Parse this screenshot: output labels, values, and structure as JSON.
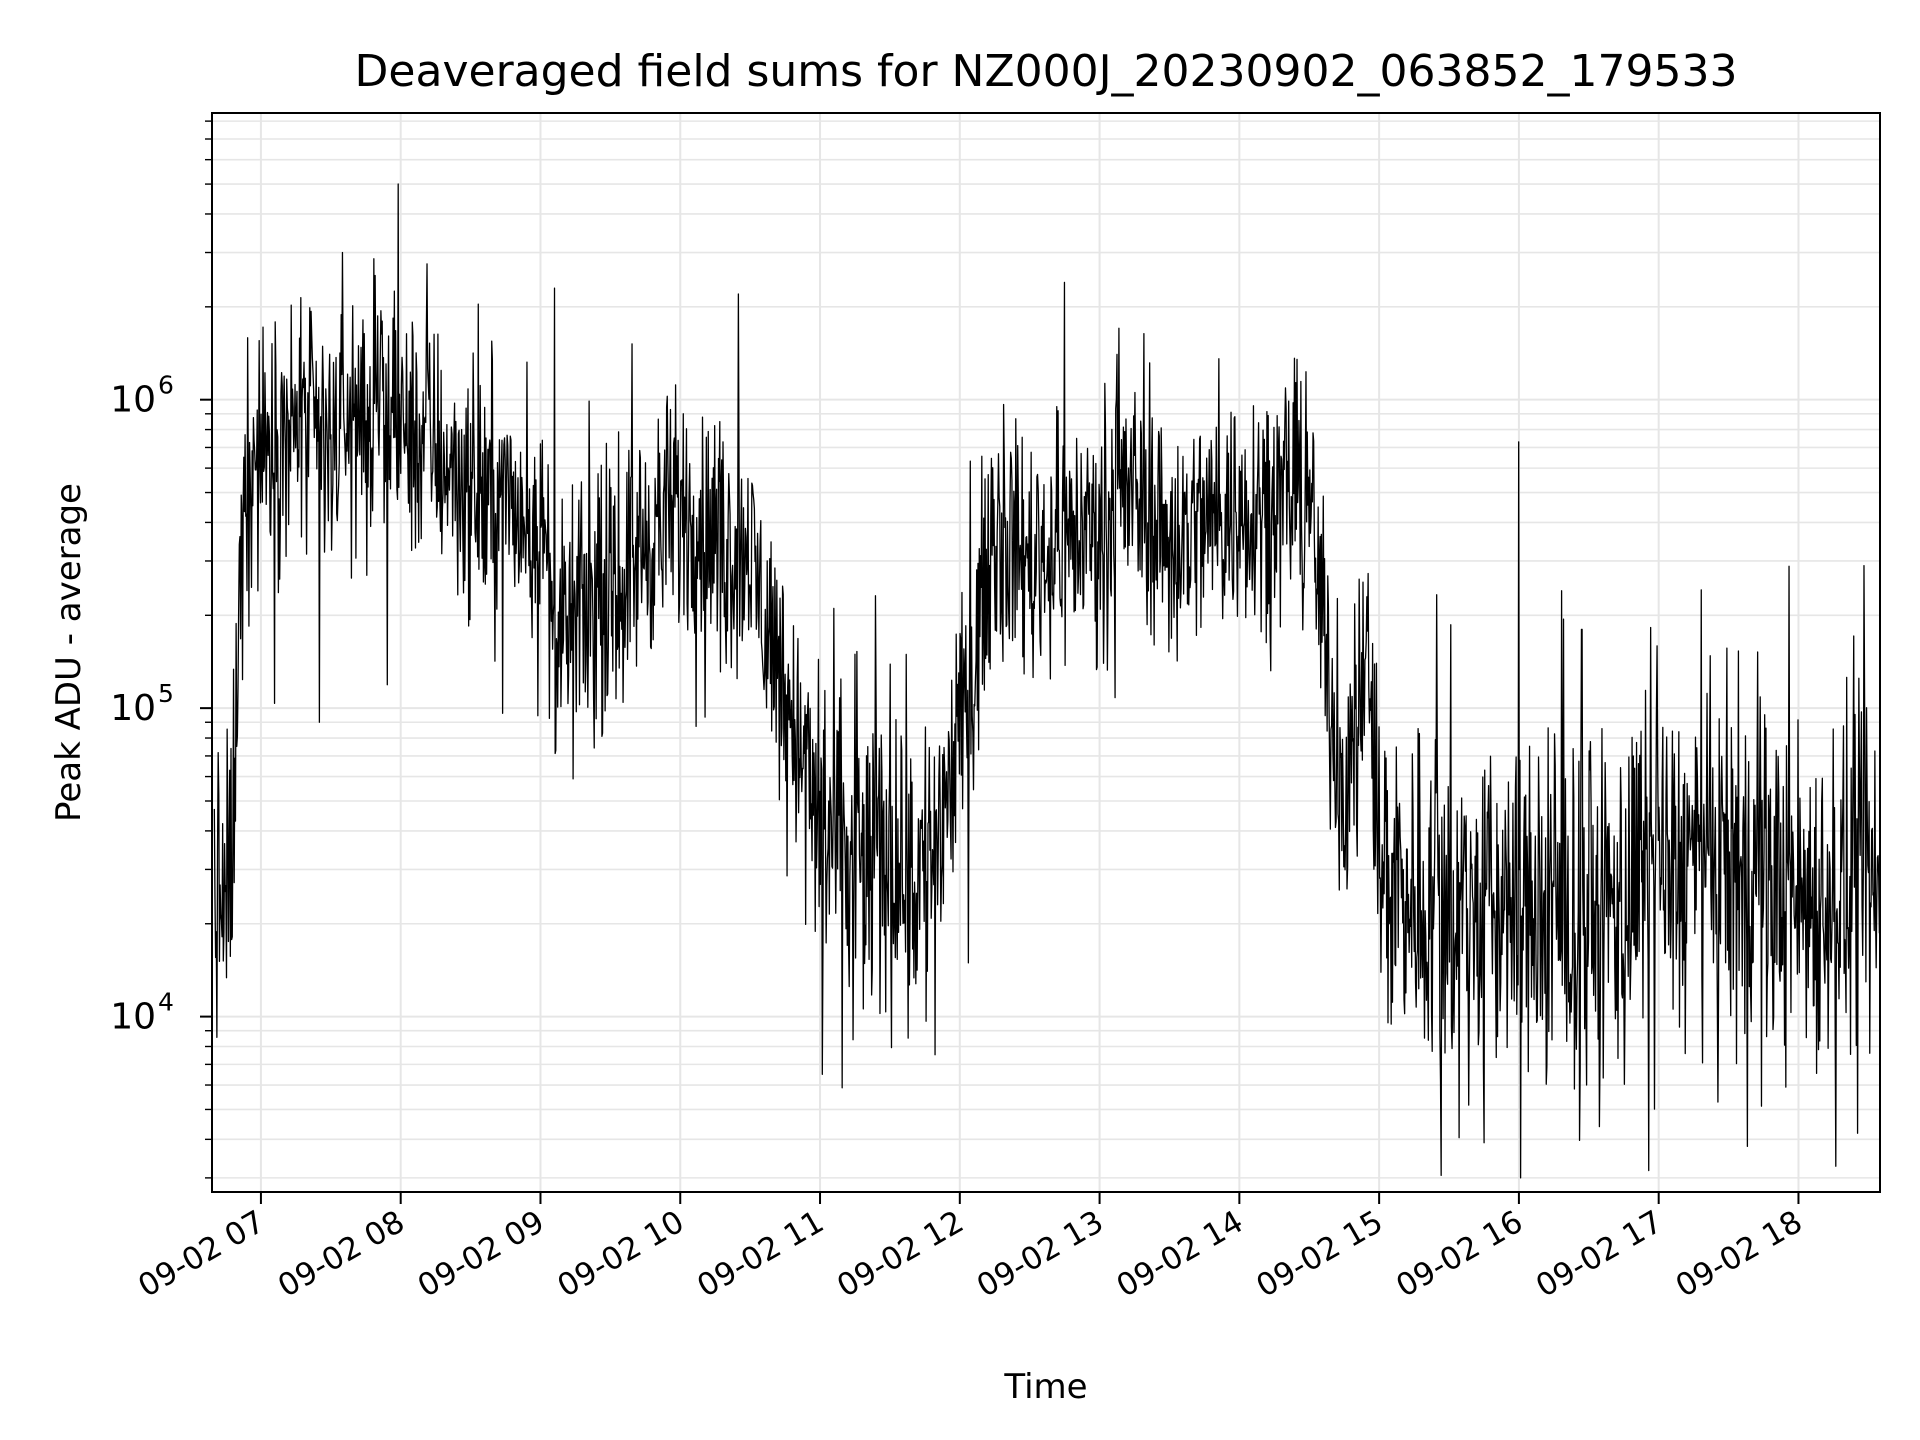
{
  "chart_data": {
    "type": "line",
    "title": "Deaveraged field sums for NZ000J_20230902_063852_179533",
    "xlabel": "Time",
    "ylabel": "Peak ADU - average",
    "yscale": "log",
    "ylim": [
      2700,
      8500000
    ],
    "xlim": [
      "2023-09-02 06:39",
      "2023-09-02 18:35"
    ],
    "grid": true,
    "line_color": "#000000",
    "x_ticks": [
      "09-02 07",
      "09-02 08",
      "09-02 09",
      "09-02 10",
      "09-02 11",
      "09-02 12",
      "09-02 13",
      "09-02 14",
      "09-02 15",
      "09-02 16",
      "09-02 17",
      "09-02 18"
    ],
    "y_ticks": [
      {
        "base": "10",
        "exp": "4",
        "value": 10000
      },
      {
        "base": "10",
        "exp": "5",
        "value": 100000
      },
      {
        "base": "10",
        "exp": "6",
        "value": 1000000
      }
    ],
    "series": [
      {
        "points": [
          [
            "2023-09-02 06:40",
            25000
          ],
          [
            "2023-09-02 06:45",
            22000
          ],
          [
            "2023-09-02 06:48",
            35000
          ],
          [
            "2023-09-02 06:50",
            150000
          ],
          [
            "2023-09-02 06:53",
            600000
          ],
          [
            "2023-09-02 07:00",
            700000
          ],
          [
            "2023-09-02 07:15",
            800000
          ],
          [
            "2023-09-02 07:30",
            750000
          ],
          [
            "2023-09-02 07:45",
            900000
          ],
          [
            "2023-09-02 08:00",
            800000
          ],
          [
            "2023-09-02 08:15",
            700000
          ],
          [
            "2023-09-02 08:30",
            500000
          ],
          [
            "2023-09-02 08:45",
            450000
          ],
          [
            "2023-09-02 09:00",
            400000
          ],
          [
            "2023-09-02 09:07",
            150000
          ],
          [
            "2023-09-02 09:15",
            200000
          ],
          [
            "2023-09-02 09:30",
            220000
          ],
          [
            "2023-09-02 09:45",
            350000
          ],
          [
            "2023-09-02 10:00",
            450000
          ],
          [
            "2023-09-02 10:15",
            350000
          ],
          [
            "2023-09-02 10:30",
            300000
          ],
          [
            "2023-09-02 10:45",
            120000
          ],
          [
            "2023-09-02 11:00",
            40000
          ],
          [
            "2023-09-02 11:15",
            30000
          ],
          [
            "2023-09-02 11:30",
            35000
          ],
          [
            "2023-09-02 11:45",
            28000
          ],
          [
            "2023-09-02 12:00",
            80000
          ],
          [
            "2023-09-02 12:15",
            400000
          ],
          [
            "2023-09-02 12:30",
            300000
          ],
          [
            "2023-09-02 12:45",
            350000
          ],
          [
            "2023-09-02 13:00",
            400000
          ],
          [
            "2023-09-02 13:15",
            500000
          ],
          [
            "2023-09-02 13:30",
            350000
          ],
          [
            "2023-09-02 13:45",
            400000
          ],
          [
            "2023-09-02 14:00",
            450000
          ],
          [
            "2023-09-02 14:15",
            500000
          ],
          [
            "2023-09-02 14:30",
            500000
          ],
          [
            "2023-09-02 14:37",
            150000
          ],
          [
            "2023-09-02 14:45",
            50000
          ],
          [
            "2023-09-02 14:55",
            150000
          ],
          [
            "2023-09-02 15:00",
            30000
          ],
          [
            "2023-09-02 15:30",
            22000
          ],
          [
            "2023-09-02 16:00",
            22000
          ],
          [
            "2023-09-02 16:30",
            20000
          ],
          [
            "2023-09-02 17:00",
            30000
          ],
          [
            "2023-09-02 17:30",
            30000
          ],
          [
            "2023-09-02 18:00",
            25000
          ],
          [
            "2023-09-02 18:35",
            25000
          ]
        ],
        "spikes": [
          [
            "2023-09-02 07:59",
            5000000
          ],
          [
            "2023-09-02 07:35",
            3000000
          ],
          [
            "2023-09-02 09:06",
            2300000
          ],
          [
            "2023-09-02 10:25",
            2200000
          ],
          [
            "2023-09-02 12:45",
            2400000
          ],
          [
            "2023-09-02 16:00",
            730000
          ],
          [
            "2023-09-02 07:25",
            90000
          ],
          [
            "2023-09-02 11:01",
            6500
          ],
          [
            "2023-09-02 15:45",
            3900
          ],
          [
            "2023-09-02 16:27",
            180000
          ],
          [
            "2023-09-02 18:26",
            125000
          ]
        ]
      }
    ]
  }
}
